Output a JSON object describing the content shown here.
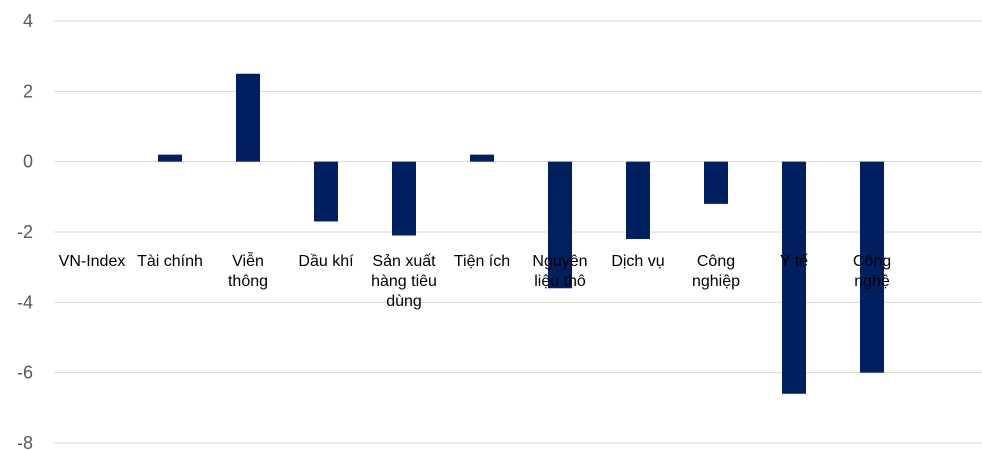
{
  "chart_data": {
    "type": "bar",
    "title": "",
    "xlabel": "",
    "ylabel": "",
    "ylim": [
      -8,
      4
    ],
    "yticks": [
      4,
      2,
      0,
      -2,
      -4,
      -6,
      -8
    ],
    "ytick_labels": [
      "4",
      "2",
      "0",
      "-2",
      "-4",
      "-6",
      "-8"
    ],
    "grid": true,
    "legend": "none",
    "bar_color": "#002060",
    "categories": [
      "VN-Index",
      "Tài chính",
      "Viễn thông",
      "Dầu khí",
      "Sản xuất hàng tiêu dùng",
      "Tiện ích",
      "Nguyên liệu thô",
      "Dịch vụ",
      "Công nghiệp",
      "Y tế",
      "Công nghệ"
    ],
    "category_label_lines": [
      [
        "VN-Index"
      ],
      [
        "Tài chính"
      ],
      [
        "Viễn",
        "thông"
      ],
      [
        "Dầu khí"
      ],
      [
        "Sản xuất",
        "hàng tiêu",
        "dùng"
      ],
      [
        "Tiện ích"
      ],
      [
        "Nguyên",
        "liệu thô"
      ],
      [
        "Dịch vụ"
      ],
      [
        "Công",
        "nghiệp"
      ],
      [
        "Y tế"
      ],
      [
        "Công",
        "nghệ"
      ]
    ],
    "values": [
      0,
      0.2,
      2.5,
      -1.7,
      -2.1,
      0.2,
      -3.6,
      -2.2,
      -1.2,
      -6.6,
      -6.0
    ]
  }
}
